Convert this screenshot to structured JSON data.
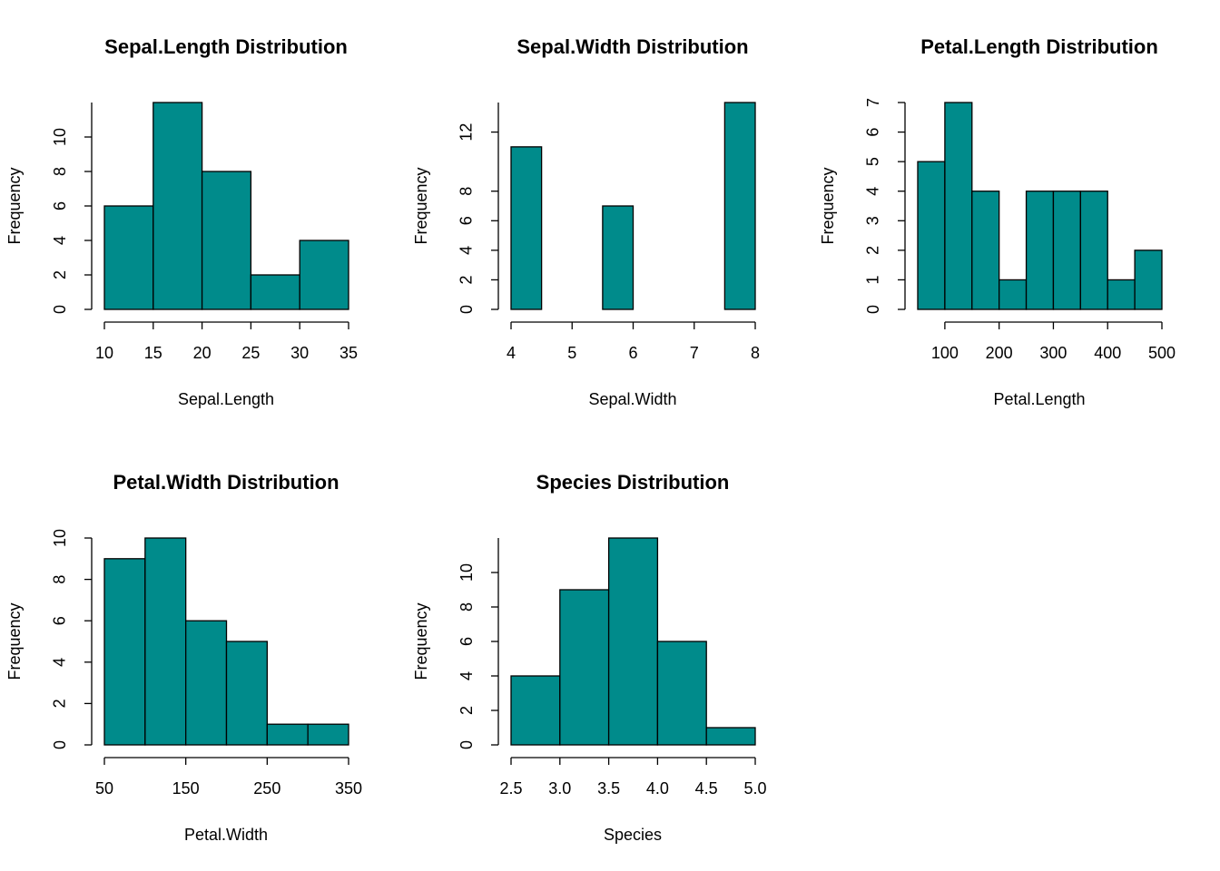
{
  "chart_data": [
    {
      "type": "histogram",
      "title": "Sepal.Length Distribution",
      "xlabel": "Sepal.Length",
      "ylabel": "Frequency",
      "bins": [
        10,
        15,
        20,
        25,
        30,
        35
      ],
      "counts": [
        6,
        12,
        8,
        2,
        4
      ],
      "color": "#008b8b",
      "xlim": [
        10,
        35
      ],
      "ylim": [
        0,
        12
      ],
      "xticks": [
        10,
        15,
        20,
        25,
        30,
        35
      ],
      "yticks": [
        0,
        2,
        4,
        6,
        8,
        10
      ]
    },
    {
      "type": "histogram",
      "title": "Sepal.Width Distribution",
      "xlabel": "Sepal.Width",
      "ylabel": "Frequency",
      "bins": [
        4,
        4.5,
        5,
        5.5,
        6,
        6.5,
        7,
        7.5,
        8
      ],
      "counts": [
        11,
        0,
        0,
        7,
        0,
        0,
        0,
        14
      ],
      "color": "#008b8b",
      "xlim": [
        4,
        8
      ],
      "ylim": [
        0,
        14
      ],
      "xticks": [
        4,
        5,
        6,
        7,
        8
      ],
      "yticks": [
        0,
        2,
        4,
        6,
        8,
        12
      ]
    },
    {
      "type": "histogram",
      "title": "Petal.Length Distribution",
      "xlabel": "Petal.Length",
      "ylabel": "Frequency",
      "bins": [
        50,
        100,
        150,
        200,
        250,
        300,
        350,
        400,
        450,
        500
      ],
      "counts": [
        5,
        7,
        4,
        1,
        4,
        4,
        4,
        1,
        2
      ],
      "color": "#008b8b",
      "xlim": [
        50,
        500
      ],
      "ylim": [
        0,
        7
      ],
      "xticks": [
        100,
        200,
        300,
        400,
        500
      ],
      "yticks": [
        0,
        1,
        2,
        3,
        4,
        5,
        6,
        7
      ]
    },
    {
      "type": "histogram",
      "title": "Petal.Width Distribution",
      "xlabel": "Petal.Width",
      "ylabel": "Frequency",
      "bins": [
        50,
        100,
        150,
        200,
        250,
        300,
        350
      ],
      "counts": [
        9,
        10,
        6,
        5,
        1,
        1
      ],
      "color": "#008b8b",
      "xlim": [
        50,
        350
      ],
      "ylim": [
        0,
        10
      ],
      "xticks": [
        50,
        150,
        250,
        350
      ],
      "yticks": [
        0,
        2,
        4,
        6,
        8,
        10
      ]
    },
    {
      "type": "histogram",
      "title": "Species Distribution",
      "xlabel": "Species",
      "ylabel": "Frequency",
      "bins": [
        2.5,
        3,
        3.5,
        4,
        4.5,
        5
      ],
      "counts": [
        4,
        9,
        12,
        6,
        1
      ],
      "color": "#008b8b",
      "xlim": [
        2.5,
        5
      ],
      "ylim": [
        0,
        12
      ],
      "xticks": [
        2.5,
        {
          "value": 3,
          "label": "3.0"
        },
        3.5,
        {
          "value": 4,
          "label": "4.0"
        },
        4.5,
        {
          "value": 5,
          "label": "5.0"
        }
      ],
      "yticks": [
        0,
        2,
        4,
        6,
        8,
        10
      ]
    }
  ]
}
